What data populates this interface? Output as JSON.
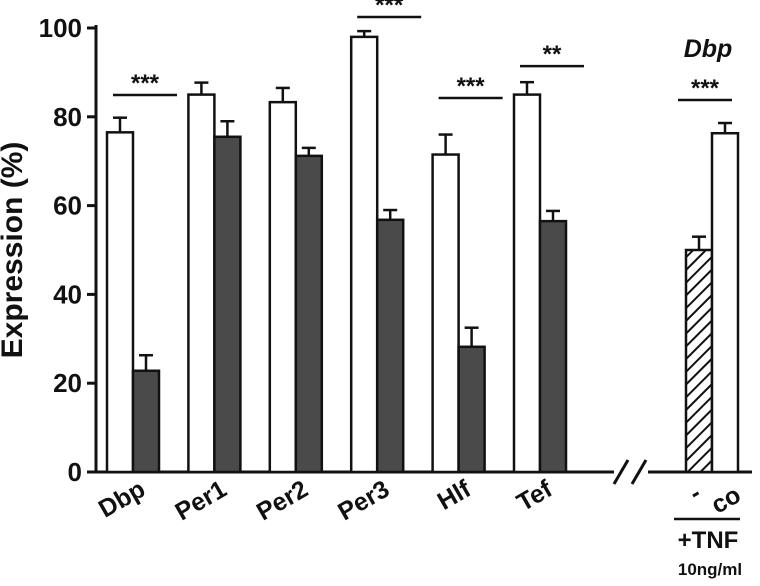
{
  "chart_data": {
    "type": "bar",
    "ylabel": "Expression (%)",
    "ylim": [
      0,
      100
    ],
    "yticks": [
      "0",
      "20",
      "40",
      "60",
      "80",
      "100"
    ],
    "categories": [
      "Dbp",
      "Per1",
      "Per2",
      "Per3",
      "Hlf",
      "Tef"
    ],
    "series": [
      {
        "color": "#ffffff",
        "values": [
          76.5,
          85,
          83.3,
          98,
          71.5,
          85
        ],
        "errors": [
          3.3,
          2.7,
          3.2,
          1.3,
          4.5,
          2.8
        ]
      },
      {
        "color": "#4a4a4a",
        "values": [
          22.8,
          75.5,
          71.2,
          56.8,
          28.2,
          56.5
        ],
        "errors": [
          3.5,
          3.5,
          1.8,
          2.2,
          4.3,
          2.3
        ]
      }
    ],
    "significance": [
      "***",
      "",
      "",
      "***",
      "***",
      "**"
    ],
    "inset": {
      "title": "Dbp",
      "categories": [
        "-",
        "co"
      ],
      "values": [
        50,
        76.3
      ],
      "errors": [
        3,
        2.3
      ],
      "fills": [
        "hatched",
        "#ffffff"
      ],
      "significance": "***",
      "group_label": "+TNF",
      "group_sublabel": "10ng/ml"
    }
  }
}
